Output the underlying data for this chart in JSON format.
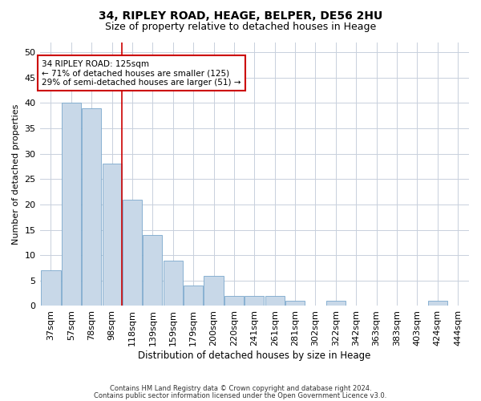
{
  "title": "34, RIPLEY ROAD, HEAGE, BELPER, DE56 2HU",
  "subtitle": "Size of property relative to detached houses in Heage",
  "xlabel": "Distribution of detached houses by size in Heage",
  "ylabel": "Number of detached properties",
  "categories": [
    "37sqm",
    "57sqm",
    "78sqm",
    "98sqm",
    "118sqm",
    "139sqm",
    "159sqm",
    "179sqm",
    "200sqm",
    "220sqm",
    "241sqm",
    "261sqm",
    "281sqm",
    "302sqm",
    "322sqm",
    "342sqm",
    "363sqm",
    "383sqm",
    "403sqm",
    "424sqm",
    "444sqm"
  ],
  "values": [
    7,
    40,
    39,
    28,
    21,
    14,
    9,
    4,
    6,
    2,
    2,
    2,
    1,
    0,
    1,
    0,
    0,
    0,
    0,
    1,
    0
  ],
  "bar_color": "#c8d8e8",
  "bar_edge_color": "#7aa8cc",
  "vline_color": "#cc0000",
  "vline_x": 3.5,
  "ylim": [
    0,
    52
  ],
  "yticks": [
    0,
    5,
    10,
    15,
    20,
    25,
    30,
    35,
    40,
    45,
    50
  ],
  "annotation_text": "34 RIPLEY ROAD: 125sqm\n← 71% of detached houses are smaller (125)\n29% of semi-detached houses are larger (51) →",
  "annotation_box_color": "#cc0000",
  "footer1": "Contains HM Land Registry data © Crown copyright and database right 2024.",
  "footer2": "Contains public sector information licensed under the Open Government Licence v3.0.",
  "bg_color": "#ffffff",
  "grid_color": "#c8d0dc",
  "title_fontsize": 10,
  "subtitle_fontsize": 9,
  "xlabel_fontsize": 8.5,
  "ylabel_fontsize": 8,
  "tick_fontsize": 8,
  "annot_fontsize": 7.5,
  "footer_fontsize": 6
}
